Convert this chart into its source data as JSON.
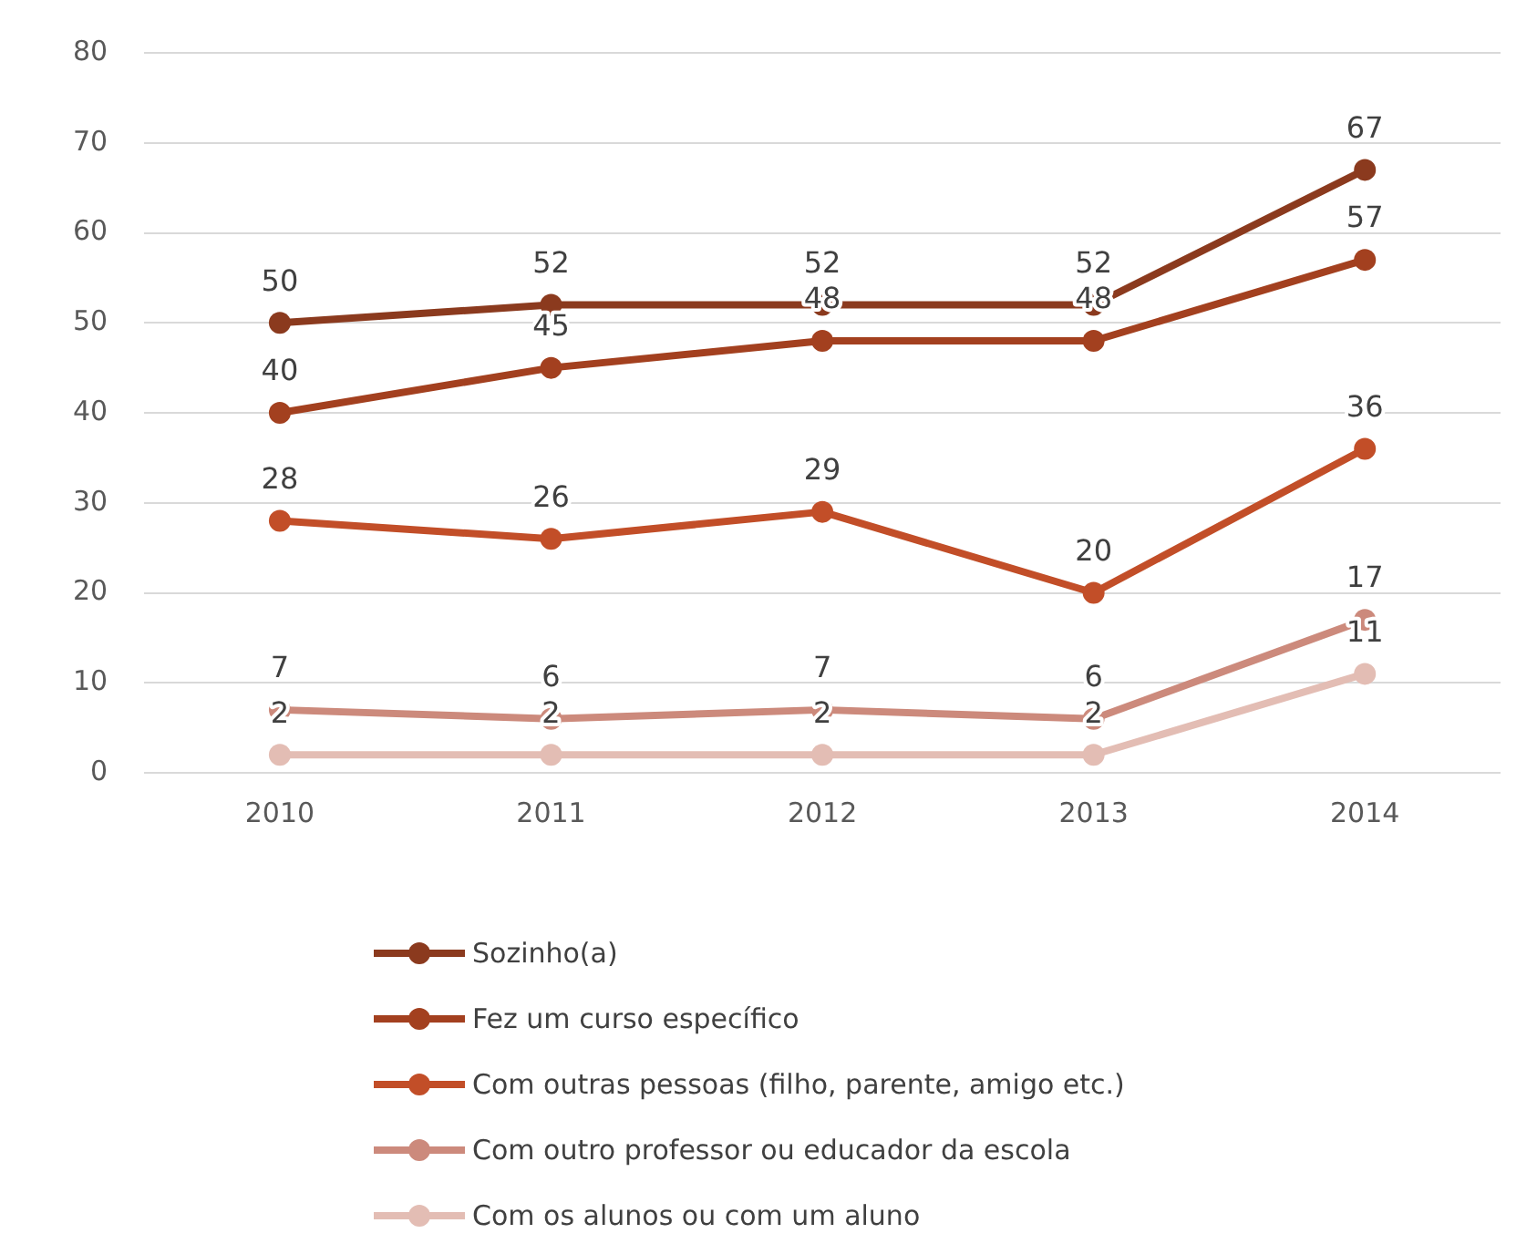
{
  "chart_data": {
    "type": "line",
    "categories": [
      "2010",
      "2011",
      "2012",
      "2013",
      "2014"
    ],
    "series": [
      {
        "name": "Sozinho(a)",
        "color": "#8b3a1e",
        "values": [
          50,
          52,
          52,
          52,
          67
        ]
      },
      {
        "name": "Fez um curso específico",
        "color": "#a3401f",
        "values": [
          40,
          45,
          48,
          48,
          57
        ]
      },
      {
        "name": "Com outras pessoas (filho, parente, amigo etc.)",
        "color": "#c24e28",
        "values": [
          28,
          26,
          29,
          20,
          36
        ]
      },
      {
        "name": "Com outro professor ou educador da escola",
        "color": "#cc8a7c",
        "values": [
          7,
          6,
          7,
          6,
          17
        ]
      },
      {
        "name": "Com os alunos ou com um aluno",
        "color": "#e3bdb4",
        "values": [
          2,
          2,
          2,
          2,
          11
        ]
      }
    ],
    "ylim": [
      0,
      80
    ],
    "yticks": [
      0,
      10,
      20,
      30,
      40,
      50,
      60,
      70,
      80
    ],
    "grid": "y",
    "legend": "bottom",
    "marker": "circle",
    "line_style": "solid",
    "data_labels": true
  }
}
